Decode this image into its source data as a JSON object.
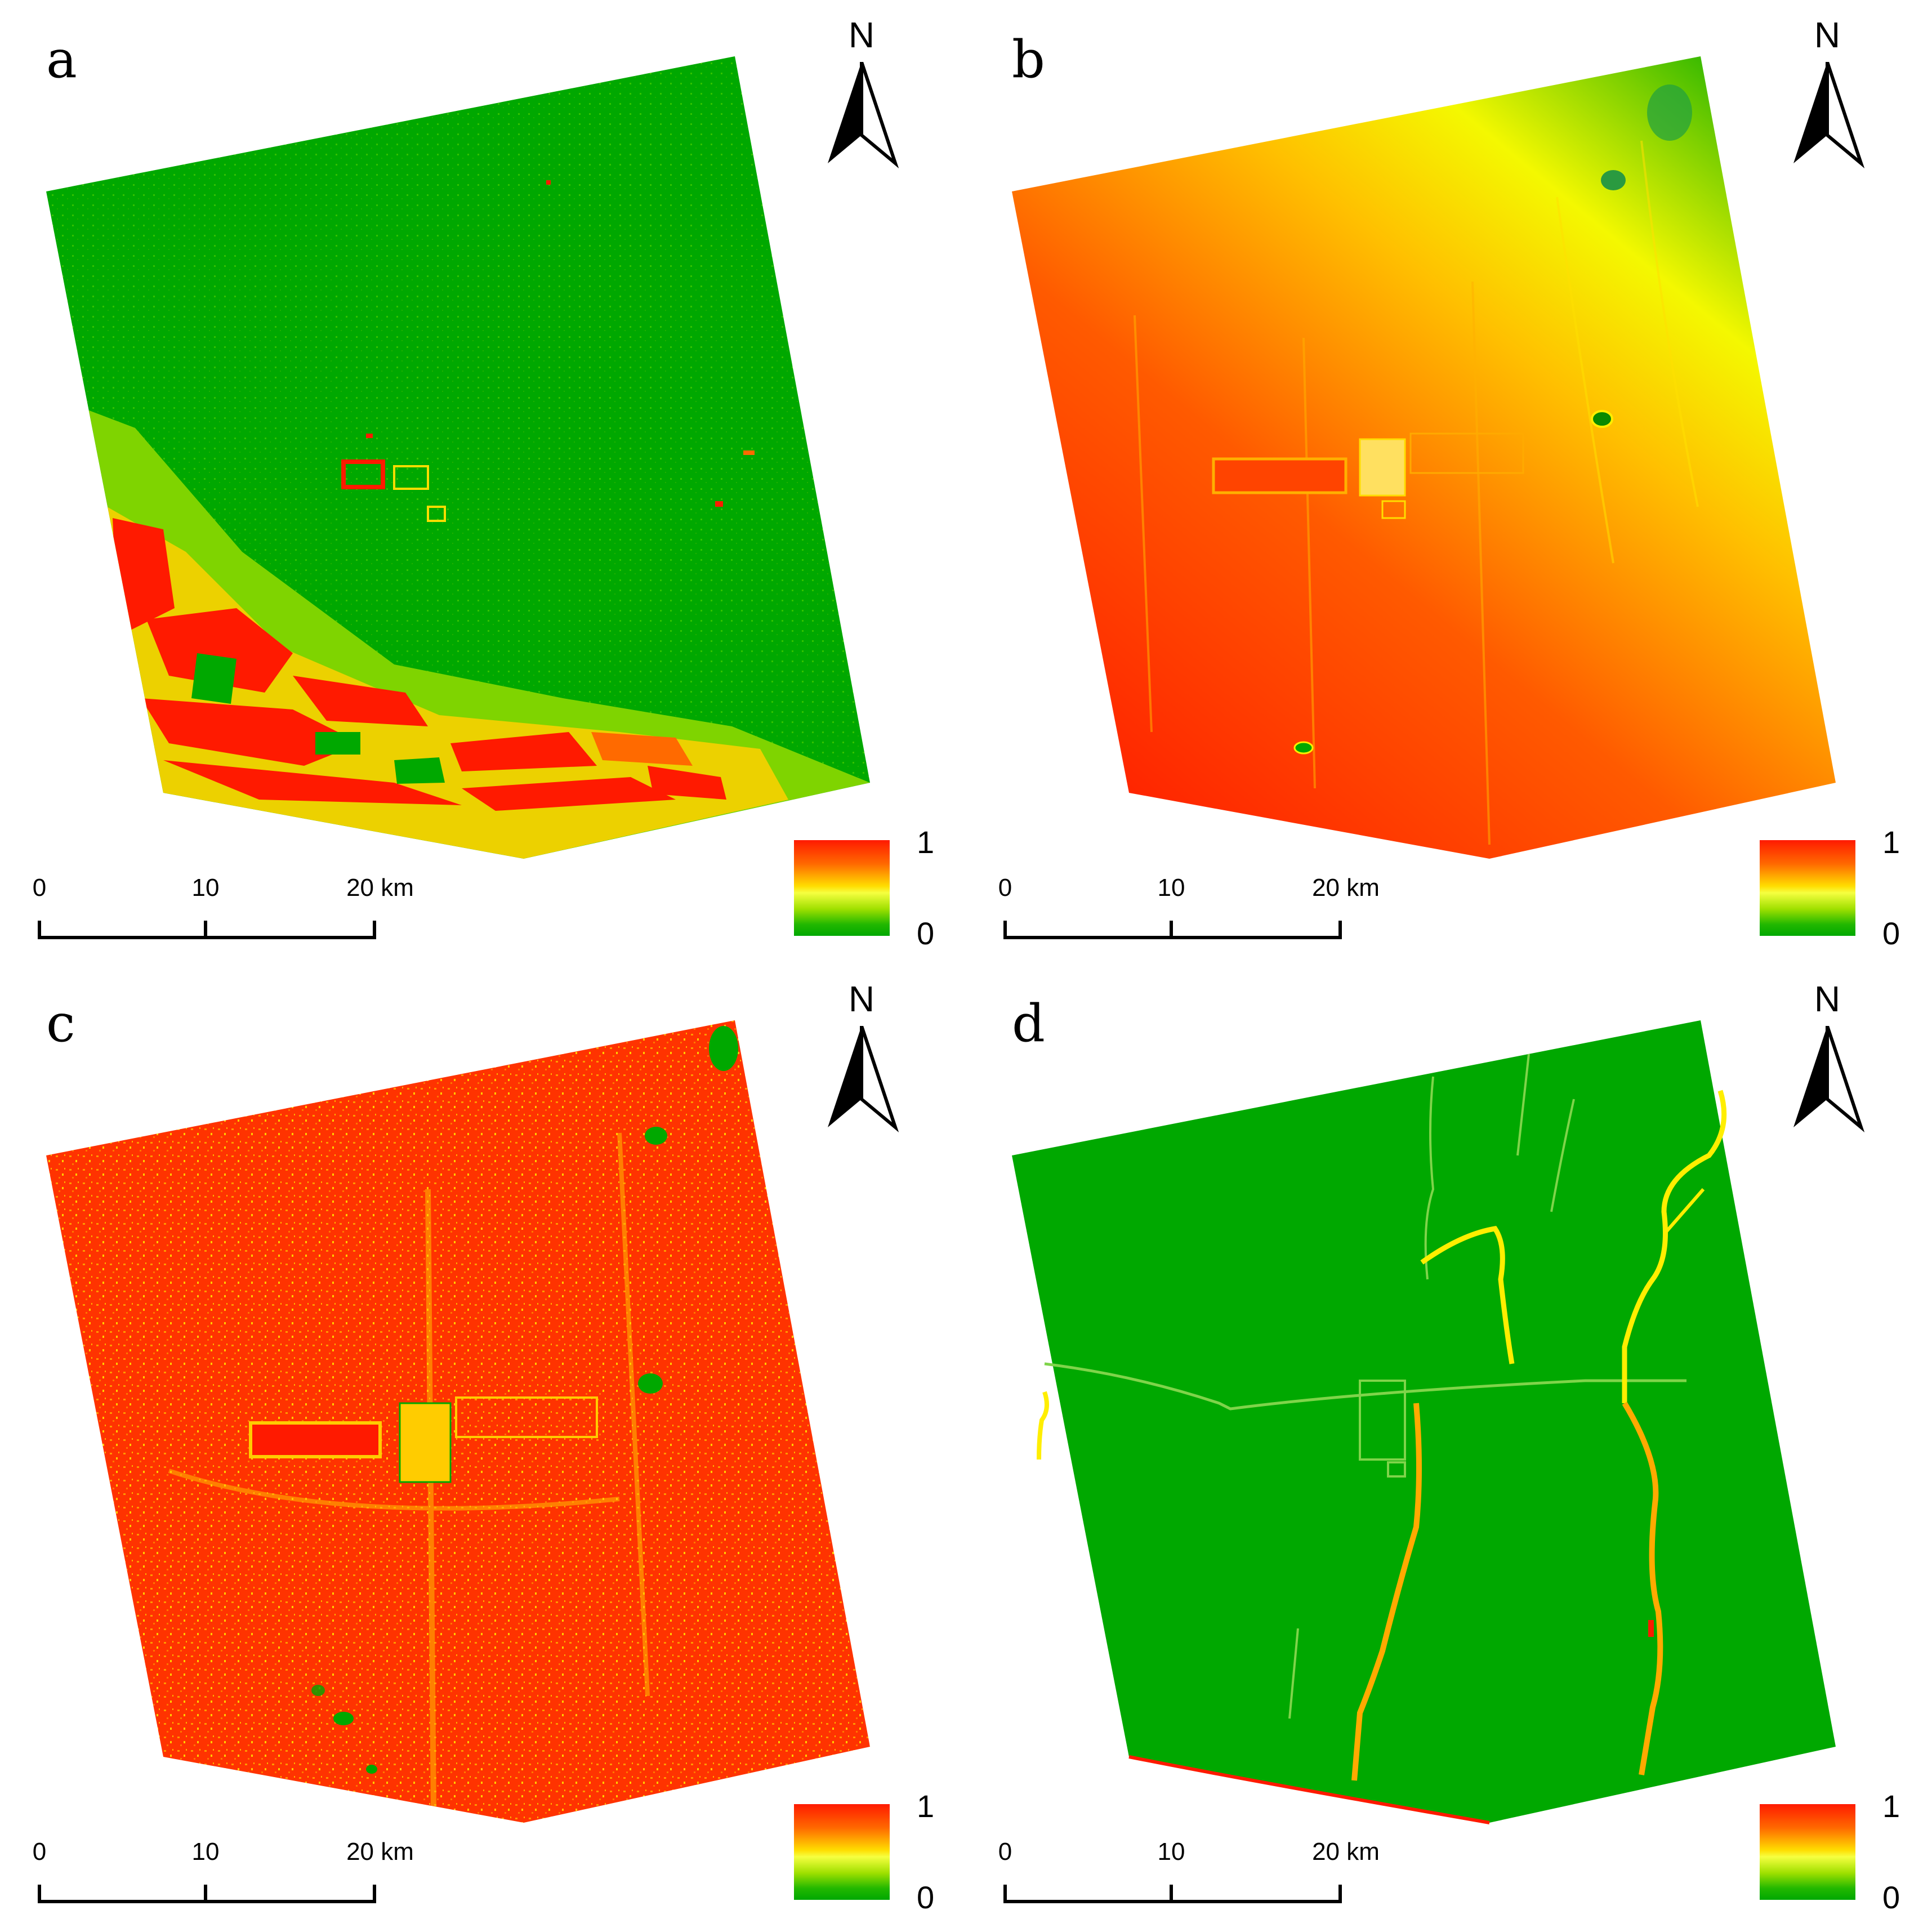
{
  "figure": {
    "colors": {
      "high": "#ff1a00",
      "mid": "#ffee00",
      "low": "#00a800"
    },
    "panels": [
      {
        "id": "a",
        "label": "a",
        "north_letter": "N",
        "scale_ticks": [
          "0",
          "10",
          "20 km"
        ],
        "legend_max": "1",
        "legend_min": "0",
        "pattern": "mostly-low-with-high-southwest-band"
      },
      {
        "id": "b",
        "label": "b",
        "north_letter": "N",
        "scale_ticks": [
          "0",
          "10",
          "20 km"
        ],
        "legend_max": "1",
        "legend_min": "0",
        "pattern": "gradient-high-southwest-to-low-northeast"
      },
      {
        "id": "c",
        "label": "c",
        "north_letter": "N",
        "scale_ticks": [
          "0",
          "10",
          "20 km"
        ],
        "legend_max": "1",
        "legend_min": "0",
        "pattern": "mostly-high-speckled"
      },
      {
        "id": "d",
        "label": "d",
        "north_letter": "N",
        "scale_ticks": [
          "0",
          "10",
          "20 km"
        ],
        "legend_max": "1",
        "legend_min": "0",
        "pattern": "low-with-high-river-lines"
      }
    ]
  }
}
